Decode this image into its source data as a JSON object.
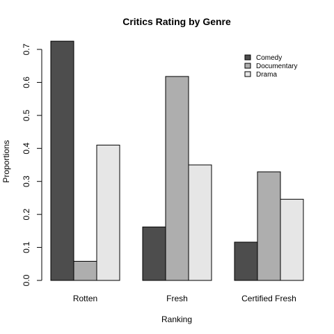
{
  "chart_data": {
    "type": "bar",
    "title": "Critics Rating by Genre",
    "xlabel": "Ranking",
    "ylabel": "Proportions",
    "categories": [
      "Rotten",
      "Fresh",
      "Certified Fresh"
    ],
    "series": [
      {
        "name": "Comedy",
        "values": [
          0.725,
          0.162,
          0.116
        ],
        "color": "#4d4d4d"
      },
      {
        "name": "Documentary",
        "values": [
          0.058,
          0.618,
          0.329
        ],
        "color": "#aeaeae"
      },
      {
        "name": "Drama",
        "values": [
          0.41,
          0.35,
          0.246
        ],
        "color": "#e6e6e6"
      }
    ],
    "ylim": [
      0,
      0.7
    ],
    "yticks": [
      "0.0",
      "0.1",
      "0.2",
      "0.3",
      "0.4",
      "0.5",
      "0.6",
      "0.7"
    ],
    "grid": false,
    "legend": "top-right"
  }
}
